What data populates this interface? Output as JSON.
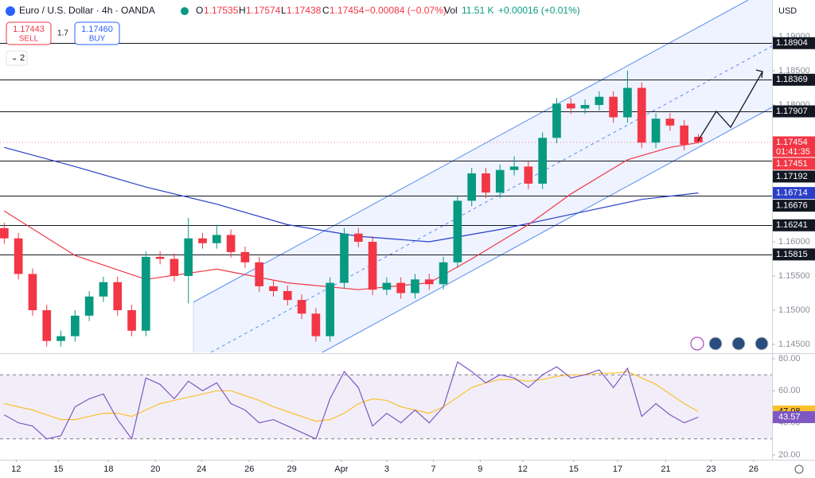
{
  "header": {
    "symbol": "Euro / U.S. Dollar · 4h · OANDA",
    "o": "O",
    "h": "H",
    "l": "L",
    "c": "C",
    "change": "−0.00084 (−0.07%)",
    "vol_label": "Vol",
    "vol": "11.51 K",
    "vol_change": "+0.00016 (+0.01%)",
    "sell_price": "1.17443",
    "sell": "SELL",
    "spread": "1.7",
    "buy_price": "1.17460",
    "buy": "BUY",
    "indicators": "2",
    "currency": "USD"
  },
  "chart_data": [
    {
      "type": "candlestick",
      "up_color": "#089981",
      "down_color": "#f23645",
      "xlim": [
        -0.3,
        54.2
      ],
      "ylim": [
        1.14384,
        1.19535
      ],
      "yticks": [
        {
          "value": 1.19,
          "label": "1.19000"
        },
        {
          "value": 1.185,
          "label": "1.18500"
        },
        {
          "value": 1.18,
          "label": "1.18000"
        },
        {
          "value": 1.16,
          "label": "1.16000"
        },
        {
          "value": 1.155,
          "label": "1.15500"
        },
        {
          "value": 1.15,
          "label": "1.15000"
        },
        {
          "value": 1.145,
          "label": "1.14500"
        }
      ],
      "ohlc": [
        [
          1.162,
          1.1628,
          1.1597,
          1.1605
        ],
        [
          1.1605,
          1.1613,
          1.1545,
          1.1553
        ],
        [
          1.1553,
          1.1561,
          1.1492,
          1.15
        ],
        [
          1.15,
          1.1508,
          1.1447,
          1.1455
        ],
        [
          1.1455,
          1.147,
          1.1447,
          1.1462
        ],
        [
          1.1462,
          1.15,
          1.1454,
          1.1492
        ],
        [
          1.1492,
          1.1528,
          1.1484,
          1.152
        ],
        [
          1.152,
          1.1549,
          1.1512,
          1.1541
        ],
        [
          1.1541,
          1.1549,
          1.1492,
          1.15
        ],
        [
          1.15,
          1.1508,
          1.1462,
          1.147
        ],
        [
          1.147,
          1.1586,
          1.1462,
          1.1578
        ],
        [
          1.1578,
          1.1586,
          1.1567,
          1.1575
        ],
        [
          1.1575,
          1.1583,
          1.1542,
          1.155
        ],
        [
          1.155,
          1.1635,
          1.151,
          1.1605
        ],
        [
          1.1605,
          1.1613,
          1.159,
          1.1598
        ],
        [
          1.1598,
          1.1625,
          1.159,
          1.161
        ],
        [
          1.161,
          1.1618,
          1.1577,
          1.1585
        ],
        [
          1.1585,
          1.1593,
          1.1562,
          1.157
        ],
        [
          1.157,
          1.1578,
          1.1527,
          1.1535
        ],
        [
          1.1535,
          1.1543,
          1.152,
          1.1528
        ],
        [
          1.1528,
          1.1536,
          1.1507,
          1.1515
        ],
        [
          1.1515,
          1.1523,
          1.1487,
          1.1495
        ],
        [
          1.1495,
          1.1503,
          1.1454,
          1.1462
        ],
        [
          1.1462,
          1.1548,
          1.1454,
          1.154
        ],
        [
          1.154,
          1.162,
          1.1532,
          1.1612
        ],
        [
          1.1612,
          1.162,
          1.1592,
          1.16
        ],
        [
          1.16,
          1.1608,
          1.1522,
          1.153
        ],
        [
          1.153,
          1.1548,
          1.1522,
          1.154
        ],
        [
          1.154,
          1.1548,
          1.1517,
          1.1525
        ],
        [
          1.1525,
          1.1553,
          1.1517,
          1.1545
        ],
        [
          1.1545,
          1.1553,
          1.153,
          1.1538
        ],
        [
          1.1538,
          1.1578,
          1.153,
          1.157
        ],
        [
          1.157,
          1.1668,
          1.1562,
          1.166
        ],
        [
          1.166,
          1.1708,
          1.1652,
          1.17
        ],
        [
          1.17,
          1.1708,
          1.1664,
          1.1672
        ],
        [
          1.1672,
          1.1713,
          1.1664,
          1.1705
        ],
        [
          1.1705,
          1.1725,
          1.1697,
          1.171
        ],
        [
          1.171,
          1.1718,
          1.1677,
          1.1685
        ],
        [
          1.1685,
          1.176,
          1.1677,
          1.1752
        ],
        [
          1.1752,
          1.181,
          1.1744,
          1.1802
        ],
        [
          1.1802,
          1.181,
          1.1787,
          1.1795
        ],
        [
          1.1795,
          1.1808,
          1.1787,
          1.18
        ],
        [
          1.18,
          1.182,
          1.1792,
          1.1812
        ],
        [
          1.1812,
          1.182,
          1.1774,
          1.1782
        ],
        [
          1.1782,
          1.185,
          1.1774,
          1.1825
        ],
        [
          1.1825,
          1.1833,
          1.1737,
          1.1745
        ],
        [
          1.1745,
          1.1788,
          1.1737,
          1.178
        ],
        [
          1.178,
          1.1788,
          1.1762,
          1.177
        ],
        [
          1.177,
          1.1778,
          1.1734,
          1.1742
        ],
        [
          1.17535,
          1.17574,
          1.17438,
          1.17454
        ]
      ],
      "series": [
        {
          "color": "#2b3fc8",
          "x": [
            0,
            5,
            10,
            15,
            20,
            25,
            30,
            35,
            40,
            45,
            49
          ],
          "values": [
            1.1738,
            1.171,
            1.168,
            1.1655,
            1.1625,
            1.1608,
            1.16,
            1.1618,
            1.164,
            1.1662,
            1.16714
          ]
        },
        {
          "color": "#f23645",
          "x": [
            0,
            5,
            10,
            15,
            20,
            25,
            30,
            33,
            37,
            40,
            44,
            47,
            49
          ],
          "values": [
            1.1645,
            1.158,
            1.1545,
            1.156,
            1.154,
            1.153,
            1.154,
            1.1575,
            1.1625,
            1.167,
            1.172,
            1.1738,
            1.1745
          ]
        }
      ],
      "levels": [
        1.18904,
        1.18369,
        1.17907,
        1.17192,
        1.16676,
        1.16241,
        1.15815
      ],
      "current_price": 1.17454,
      "countdown": "01:41:35",
      "bid_price": 1.17451
    },
    {
      "type": "line",
      "xlim": [
        -0.3,
        54.2
      ],
      "ylim": [
        17,
        82.5
      ],
      "yticks": [
        {
          "value": 80,
          "label": "80.00"
        },
        {
          "value": 60,
          "label": "60.00"
        },
        {
          "value": 40,
          "label": "40.00"
        },
        {
          "value": 20,
          "label": "20.00"
        }
      ],
      "bands": [
        70,
        30
      ],
      "xticks": [
        {
          "value": 0.84,
          "label": "12"
        },
        {
          "value": 3.82,
          "label": "15"
        },
        {
          "value": 7.36,
          "label": "18"
        },
        {
          "value": 10.67,
          "label": "20"
        },
        {
          "value": 13.93,
          "label": "24"
        },
        {
          "value": 17.3,
          "label": "26"
        },
        {
          "value": 20.3,
          "label": "29"
        },
        {
          "value": 23.8,
          "label": "Apr"
        },
        {
          "value": 27.0,
          "label": "3"
        },
        {
          "value": 30.3,
          "label": "7"
        },
        {
          "value": 33.6,
          "label": "9"
        },
        {
          "value": 36.6,
          "label": "12"
        },
        {
          "value": 40.2,
          "label": "15"
        },
        {
          "value": 43.3,
          "label": "17"
        },
        {
          "value": 46.7,
          "label": "21"
        },
        {
          "value": 49.9,
          "label": "23"
        },
        {
          "value": 52.9,
          "label": "26"
        }
      ],
      "series": [
        {
          "color": "#fbc02d",
          "values": [
            52,
            50,
            48,
            45,
            42,
            42,
            44,
            46,
            46,
            44,
            48,
            52,
            54,
            56,
            58,
            60,
            60,
            57,
            54,
            50,
            47,
            44,
            41,
            42,
            46,
            52,
            55,
            54,
            50,
            48,
            46,
            50,
            56,
            62,
            65,
            67,
            67,
            66,
            67,
            69,
            70,
            70,
            71,
            71,
            72,
            68,
            64,
            58,
            52,
            47.08
          ]
        },
        {
          "color": "#7e57c2",
          "values": [
            45,
            40,
            38,
            30,
            32,
            50,
            55,
            58,
            42,
            30,
            68,
            64,
            55,
            66,
            60,
            65,
            52,
            48,
            40,
            42,
            38,
            34,
            30,
            55,
            72,
            62,
            38,
            46,
            40,
            48,
            40,
            50,
            78,
            72,
            65,
            70,
            68,
            62,
            70,
            75,
            68,
            70,
            73,
            62,
            74,
            44,
            52,
            45,
            40,
            43.57
          ]
        }
      ]
    }
  ]
}
